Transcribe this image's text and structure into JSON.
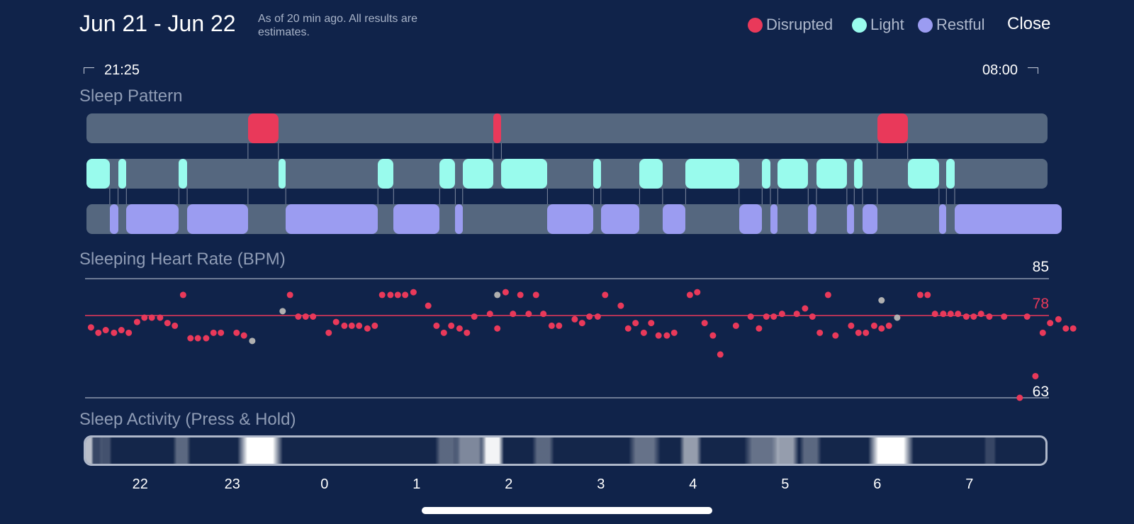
{
  "header": {
    "title": "Jun 21 - Jun 22",
    "subtitle": "As of 20 min ago. All results are estimates.",
    "close_label": "Close"
  },
  "legend": [
    {
      "label": "Disrupted",
      "color": "#e9395a"
    },
    {
      "label": "Light",
      "color": "#99fbed"
    },
    {
      "label": "Restful",
      "color": "#9b9cf1"
    }
  ],
  "time_range": {
    "start": "21:25",
    "end": "08:00"
  },
  "sleep_pattern": {
    "label": "Sleep Pattern",
    "start_hour": 21.417,
    "end_hour": 32.0,
    "stages": [
      {
        "stage": "light",
        "start": 21.417,
        "end": 21.67
      },
      {
        "stage": "restful",
        "start": 21.67,
        "end": 21.76
      },
      {
        "stage": "light",
        "start": 21.76,
        "end": 21.85
      },
      {
        "stage": "restful",
        "start": 21.85,
        "end": 22.42
      },
      {
        "stage": "light",
        "start": 22.42,
        "end": 22.51
      },
      {
        "stage": "restful",
        "start": 22.51,
        "end": 23.17
      },
      {
        "stage": "disrupted",
        "start": 23.17,
        "end": 23.5
      },
      {
        "stage": "light",
        "start": 23.5,
        "end": 23.58
      },
      {
        "stage": "restful",
        "start": 23.58,
        "end": 24.58
      },
      {
        "stage": "light",
        "start": 24.58,
        "end": 24.75
      },
      {
        "stage": "restful",
        "start": 24.75,
        "end": 25.25
      },
      {
        "stage": "light",
        "start": 25.25,
        "end": 25.42
      },
      {
        "stage": "restful",
        "start": 25.42,
        "end": 25.5
      },
      {
        "stage": "light",
        "start": 25.5,
        "end": 25.83
      },
      {
        "stage": "disrupted",
        "start": 25.83,
        "end": 25.92
      },
      {
        "stage": "light",
        "start": 25.92,
        "end": 26.42
      },
      {
        "stage": "restful",
        "start": 26.42,
        "end": 26.92
      },
      {
        "stage": "light",
        "start": 26.92,
        "end": 27.0
      },
      {
        "stage": "restful",
        "start": 27.0,
        "end": 27.42
      },
      {
        "stage": "light",
        "start": 27.42,
        "end": 27.67
      },
      {
        "stage": "restful",
        "start": 27.67,
        "end": 27.92
      },
      {
        "stage": "light",
        "start": 27.92,
        "end": 28.5
      },
      {
        "stage": "restful",
        "start": 28.5,
        "end": 28.75
      },
      {
        "stage": "light",
        "start": 28.75,
        "end": 28.84
      },
      {
        "stage": "restful",
        "start": 28.84,
        "end": 28.92
      },
      {
        "stage": "light",
        "start": 28.92,
        "end": 29.25
      },
      {
        "stage": "restful",
        "start": 29.25,
        "end": 29.34
      },
      {
        "stage": "light",
        "start": 29.34,
        "end": 29.67
      },
      {
        "stage": "restful",
        "start": 29.67,
        "end": 29.75
      },
      {
        "stage": "light",
        "start": 29.75,
        "end": 29.84
      },
      {
        "stage": "restful",
        "start": 29.84,
        "end": 30.0
      },
      {
        "stage": "disrupted",
        "start": 30.0,
        "end": 30.33
      },
      {
        "stage": "light",
        "start": 30.33,
        "end": 30.67
      },
      {
        "stage": "restful",
        "start": 30.67,
        "end": 30.75
      },
      {
        "stage": "light",
        "start": 30.75,
        "end": 30.84
      },
      {
        "stage": "restful",
        "start": 30.84,
        "end": 32.0
      }
    ]
  },
  "heart_rate": {
    "label": "Sleeping Heart Rate (BPM)",
    "max_label": "85",
    "avg_label": "78",
    "min_label": "63",
    "avg_color": "#e9395a",
    "max": 85,
    "avg": 78,
    "min": 63
  },
  "sleep_activity": {
    "label": "Sleep Activity (Press & Hold)",
    "bands": [
      {
        "start": 21.417,
        "end": 21.45,
        "intensity": 0.7
      },
      {
        "start": 21.5,
        "end": 21.55,
        "intensity": 0.15
      },
      {
        "start": 21.6,
        "end": 21.65,
        "intensity": 0.2
      },
      {
        "start": 22.4,
        "end": 22.5,
        "intensity": 0.3
      },
      {
        "start": 23.1,
        "end": 23.5,
        "intensity": 1.0
      },
      {
        "start": 25.25,
        "end": 25.4,
        "intensity": 0.3
      },
      {
        "start": 25.45,
        "end": 25.7,
        "intensity": 0.45
      },
      {
        "start": 25.75,
        "end": 25.9,
        "intensity": 0.95
      },
      {
        "start": 26.3,
        "end": 26.45,
        "intensity": 0.3
      },
      {
        "start": 27.35,
        "end": 27.6,
        "intensity": 0.35
      },
      {
        "start": 27.9,
        "end": 28.05,
        "intensity": 0.55
      },
      {
        "start": 28.6,
        "end": 28.9,
        "intensity": 0.35
      },
      {
        "start": 28.9,
        "end": 29.1,
        "intensity": 0.55
      },
      {
        "start": 29.2,
        "end": 29.35,
        "intensity": 0.3
      },
      {
        "start": 29.95,
        "end": 30.35,
        "intensity": 1.0
      },
      {
        "start": 31.2,
        "end": 31.25,
        "intensity": 0.15
      },
      {
        "start": 31.9,
        "end": 31.98,
        "intensity": 0.2
      }
    ]
  },
  "axis_ticks": [
    "22",
    "23",
    "0",
    "1",
    "2",
    "3",
    "4",
    "5",
    "6",
    "7"
  ],
  "chart_data": {
    "type": "scatter",
    "title": "Sleeping Heart Rate (BPM)",
    "xlabel": "",
    "ylabel": "",
    "ylim": [
      63,
      85
    ],
    "x_hour_ticks": [
      22,
      23,
      24,
      25,
      26,
      27,
      28,
      29,
      30,
      31
    ],
    "reference_lines": [
      85,
      78,
      63
    ],
    "series": [
      {
        "marker_color": "#e9395a",
        "points": [
          [
            21.42,
            76
          ],
          [
            21.5,
            75
          ],
          [
            21.58,
            75.5
          ],
          [
            21.67,
            75
          ],
          [
            21.75,
            75.5
          ],
          [
            21.83,
            75
          ],
          [
            21.92,
            77
          ],
          [
            22.0,
            77.8
          ],
          [
            22.08,
            77.8
          ],
          [
            22.17,
            77.8
          ],
          [
            22.25,
            76.8
          ],
          [
            22.33,
            76.3
          ],
          [
            22.42,
            82
          ],
          [
            22.5,
            74
          ],
          [
            22.58,
            74
          ],
          [
            22.67,
            74
          ],
          [
            22.75,
            75
          ],
          [
            22.83,
            75
          ],
          [
            23.0,
            75
          ],
          [
            23.08,
            74.5
          ],
          [
            23.58,
            82
          ],
          [
            23.67,
            78
          ],
          [
            23.75,
            78
          ],
          [
            23.83,
            78
          ],
          [
            24.0,
            75
          ],
          [
            24.08,
            77
          ],
          [
            24.17,
            76.3
          ],
          [
            24.25,
            76.3
          ],
          [
            24.33,
            76.3
          ],
          [
            24.42,
            75.8
          ],
          [
            24.5,
            76.3
          ],
          [
            24.58,
            82
          ],
          [
            24.67,
            82
          ],
          [
            24.75,
            82
          ],
          [
            24.83,
            82
          ],
          [
            24.92,
            82.5
          ],
          [
            25.08,
            80
          ],
          [
            25.17,
            76.3
          ],
          [
            25.25,
            75
          ],
          [
            25.33,
            76.3
          ],
          [
            25.42,
            75.8
          ],
          [
            25.5,
            75
          ],
          [
            25.58,
            78
          ],
          [
            25.75,
            78.5
          ],
          [
            25.83,
            75.8
          ],
          [
            25.92,
            82.5
          ],
          [
            26.0,
            78.5
          ],
          [
            26.08,
            82
          ],
          [
            26.17,
            78.5
          ],
          [
            26.25,
            82
          ],
          [
            26.33,
            78.5
          ],
          [
            26.42,
            76.3
          ],
          [
            26.5,
            76.3
          ],
          [
            26.67,
            77.5
          ],
          [
            26.75,
            76.8
          ],
          [
            26.83,
            78
          ],
          [
            26.92,
            78
          ],
          [
            27.0,
            82
          ],
          [
            27.17,
            80
          ],
          [
            27.25,
            75.8
          ],
          [
            27.33,
            76.8
          ],
          [
            27.42,
            75
          ],
          [
            27.5,
            76.8
          ],
          [
            27.58,
            74.5
          ],
          [
            27.67,
            74.5
          ],
          [
            27.75,
            75
          ],
          [
            27.92,
            82
          ],
          [
            28.0,
            82.5
          ],
          [
            28.08,
            76.8
          ],
          [
            28.17,
            74.5
          ],
          [
            28.25,
            71
          ],
          [
            28.42,
            76.3
          ],
          [
            28.58,
            78
          ],
          [
            28.67,
            75.8
          ],
          [
            28.75,
            78
          ],
          [
            28.83,
            78
          ],
          [
            28.92,
            78.5
          ],
          [
            29.08,
            78.5
          ],
          [
            29.17,
            79.5
          ],
          [
            29.25,
            78
          ],
          [
            29.33,
            75
          ],
          [
            29.42,
            82
          ],
          [
            29.5,
            74.5
          ],
          [
            29.67,
            76.3
          ],
          [
            29.75,
            75
          ],
          [
            29.83,
            75
          ],
          [
            29.92,
            76.3
          ],
          [
            30.0,
            75.8
          ],
          [
            30.08,
            76.3
          ],
          [
            30.42,
            82
          ],
          [
            30.5,
            82
          ],
          [
            30.58,
            78.5
          ],
          [
            30.67,
            78.5
          ],
          [
            30.75,
            78.5
          ],
          [
            30.83,
            78.5
          ],
          [
            30.92,
            78
          ],
          [
            31.0,
            78
          ],
          [
            31.08,
            78.5
          ],
          [
            31.17,
            78
          ],
          [
            31.33,
            78
          ],
          [
            31.5,
            63
          ],
          [
            31.58,
            78
          ],
          [
            31.67,
            67
          ],
          [
            31.75,
            75
          ],
          [
            31.83,
            76.8
          ],
          [
            31.92,
            77.5
          ],
          [
            32.0,
            75.8
          ],
          [
            32.08,
            75.8
          ]
        ]
      },
      {
        "marker_color": "#b0b0b0",
        "points": [
          [
            23.17,
            73.5
          ],
          [
            23.5,
            79
          ],
          [
            25.83,
            82
          ],
          [
            30.0,
            81
          ],
          [
            30.17,
            77.8
          ]
        ]
      }
    ]
  }
}
